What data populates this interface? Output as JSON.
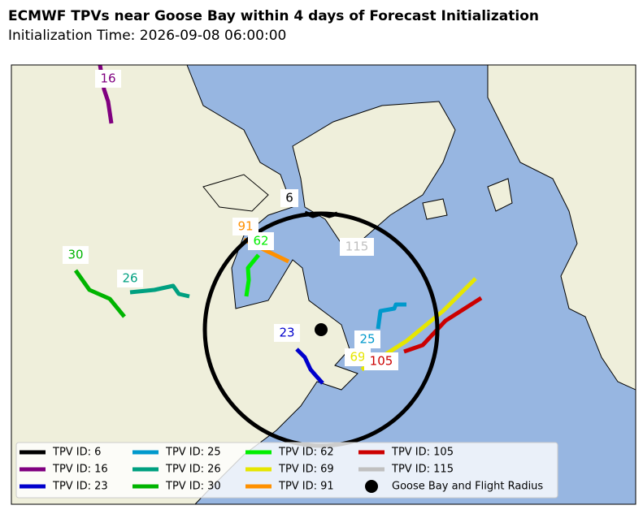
{
  "title": "ECMWF TPVs near Goose Bay within 4 days of Forecast Initialization",
  "subtitle": "Initialization Time: 2026-09-08 06:00:00",
  "tracks": [
    {
      "label": "6",
      "legend": "TPV ID: 6",
      "color": "#000000"
    },
    {
      "label": "16",
      "legend": "TPV ID: 16",
      "color": "#800080"
    },
    {
      "label": "23",
      "legend": "TPV ID: 23",
      "color": "#0000cc"
    },
    {
      "label": "25",
      "legend": "TPV ID: 25",
      "color": "#0099cc"
    },
    {
      "label": "26",
      "legend": "TPV ID: 26",
      "color": "#00a080"
    },
    {
      "label": "30",
      "legend": "TPV ID: 30",
      "color": "#00b400"
    },
    {
      "label": "62",
      "legend": "TPV ID: 62",
      "color": "#00ee00"
    },
    {
      "label": "69",
      "legend": "TPV ID: 69",
      "color": "#e6e600"
    },
    {
      "label": "91",
      "legend": "TPV ID: 91",
      "color": "#ff9000"
    },
    {
      "label": "105",
      "legend": "TPV ID: 105",
      "color": "#cc0000"
    },
    {
      "label": "115",
      "legend": "TPV ID: 115",
      "color": "#c0c0c0"
    }
  ],
  "goose_bay": {
    "legend": "Goose Bay and Flight Radius",
    "color": "#000000"
  }
}
